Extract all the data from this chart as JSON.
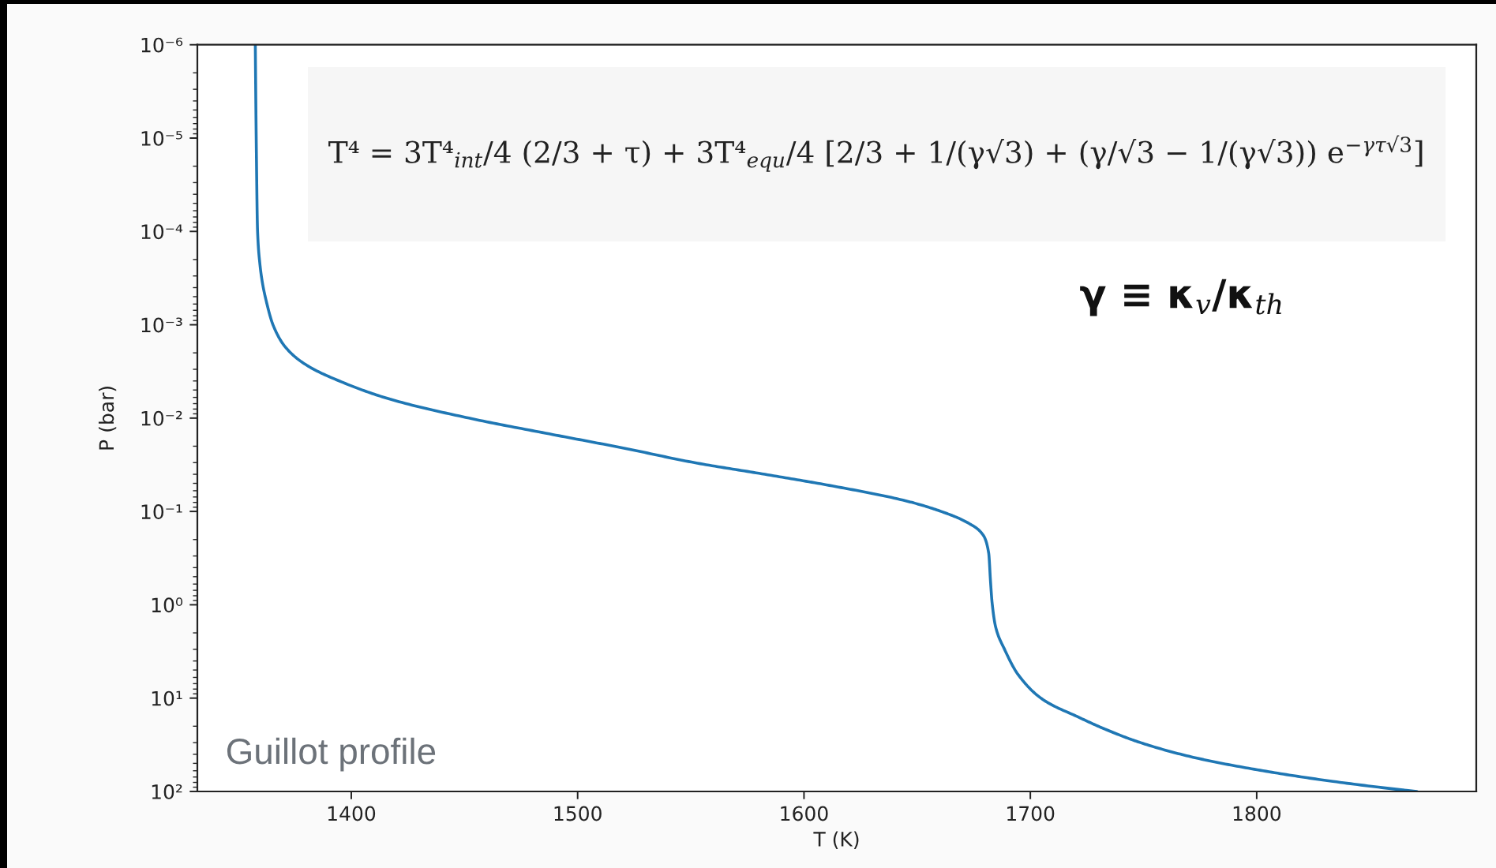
{
  "chart_data": {
    "type": "line",
    "xlabel": "T (K)",
    "ylabel": "P (bar)",
    "annotations": [
      "T⁴ = 3T⁴$_{int}$/4 (2/3 + τ) + 3T⁴$_{equ}$/4 [2/3 + 1/(γ√3) + (γ/√3 − 1/(γ√3)) e$^{−γτ√3}$]",
      "γ ≡ κ$_{v}$/κ$_{th}$",
      "Guillot profile"
    ],
    "x": [
      1357.6,
      1358.0,
      1358.6,
      1359.6,
      1360.7,
      1362.3,
      1365.4,
      1370.6,
      1379.1,
      1394.7,
      1416.5,
      1452,
      1489,
      1520.5,
      1551.6,
      1582.7,
      1613.8,
      1645.0,
      1660.6,
      1673.0,
      1679.2,
      1681.6,
      1682.4,
      1683.1,
      1684.7,
      1688.6,
      1694.6,
      1705.4,
      1720.8,
      1733.4,
      1748.7,
      1771.9,
      1802.8,
      1833.7,
      1870.8
    ],
    "series": [
      {
        "color": "#1f77b4",
        "values": [
          1e-06,
          1e-05,
          0.0001,
          0.00022,
          0.00035,
          0.00054,
          0.001,
          0.0017,
          0.0026,
          0.004,
          0.0062,
          0.01,
          0.015,
          0.021,
          0.03,
          0.04,
          0.054,
          0.077,
          0.1,
          0.135,
          0.18,
          0.28,
          0.56,
          0.95,
          1.74,
          3.0,
          5.6,
          10.3,
          15.8,
          21.7,
          30,
          43,
          60,
          78,
          100
        ]
      }
    ],
    "xlim": [
      1332,
      1897
    ],
    "ylim": [
      100,
      1e-06
    ],
    "xticks": [
      1400,
      1500,
      1600,
      1700,
      1800
    ],
    "yticks": [
      {
        "value": 1e-06,
        "label": "10⁻⁶"
      },
      {
        "value": 1e-05,
        "label": "10⁻⁵"
      },
      {
        "value": 0.0001,
        "label": "10⁻⁴"
      },
      {
        "value": 0.001,
        "label": "10⁻³"
      },
      {
        "value": 0.01,
        "label": "10⁻²"
      },
      {
        "value": 0.1,
        "label": "10⁻¹"
      },
      {
        "value": 1,
        "label": "10⁰"
      },
      {
        "value": 10,
        "label": "10¹"
      },
      {
        "value": 100,
        "label": "10²"
      }
    ],
    "log": "y",
    "grid": false,
    "line_style": "solid"
  }
}
